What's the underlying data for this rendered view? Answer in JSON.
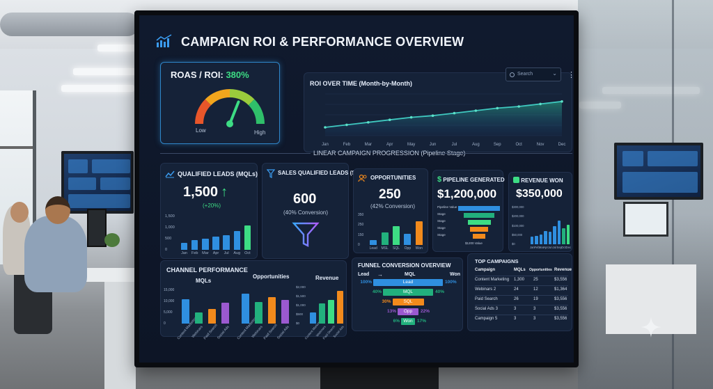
{
  "dashboard": {
    "title": "CAMPAIGN ROI & PERFORMANCE OVERVIEW",
    "search_placeholder": "Search",
    "section_label": "LINEAR CAMPAIGN PROGRESSION (Pipeline Stage)"
  },
  "roas": {
    "label": "ROAS / ROI: ",
    "value": "380%",
    "low": "Low",
    "high": "High",
    "gauge_level": 0.62
  },
  "roi_chart": {
    "title": "ROI OVER TIME (Month-by-Month)",
    "months": [
      "Jan",
      "Feb",
      "Mar",
      "Apr",
      "May",
      "Jun",
      "Jul",
      "Aug",
      "Sep",
      "Oct",
      "Nov",
      "Dec"
    ],
    "values": [
      1.0,
      1.3,
      1.6,
      1.9,
      2.2,
      2.4,
      2.7,
      3.0,
      3.3,
      3.5,
      3.8,
      4.1
    ],
    "ylim": [
      0,
      5
    ]
  },
  "mql": {
    "title": "QUALIFIED LEADS (MQLs)",
    "value": "1,500",
    "arrow": "↑",
    "change": "(+20%)",
    "yticks": [
      "1,500",
      "1,000",
      "500",
      "0"
    ],
    "months": [
      "Jan",
      "Feb",
      "Mar",
      "Apr",
      "Jul",
      "Aug",
      "Oct"
    ],
    "values": [
      300,
      450,
      500,
      600,
      650,
      850,
      1100
    ],
    "ymax": 1500
  },
  "sql": {
    "title": "SALES QUALIFIED LEADS (SQLs)",
    "value": "600",
    "sub": "(40% Conversion)"
  },
  "opps": {
    "title": "OPPORTUNITIES",
    "value": "250",
    "sub": "(42% Conversion)",
    "yticks": [
      "350",
      "250",
      "150",
      "0"
    ],
    "stages": [
      "Lead",
      "MSL",
      "SQL",
      "Opp",
      "Won"
    ],
    "values": [
      60,
      150,
      220,
      130,
      280
    ],
    "ymax": 350
  },
  "pipeline": {
    "title": "PIPELINE GENERATED",
    "value": "$1,200,000",
    "rows": [
      "Pipeline Value",
      "Stage",
      "Stage",
      "Stage",
      "Stage"
    ],
    "fractions": [
      1.0,
      0.72,
      0.55,
      0.42,
      0.3
    ],
    "footer": "$1200 Value"
  },
  "revenue": {
    "title": "REVENUE WON",
    "value": "$350,000",
    "yticks": [
      "$300,000",
      "$200,000",
      "$100,000",
      "$50,000",
      "$0"
    ],
    "months": [
      "Jan",
      "Feb",
      "Mar",
      "Apr",
      "Jun",
      "Jul",
      "Sep",
      "Oct",
      "Dec"
    ],
    "values": [
      60,
      70,
      80,
      110,
      100,
      150,
      190,
      130,
      160
    ],
    "ymax": 300
  },
  "channel": {
    "title": "CHANNEL PERFORMANCE",
    "mqls_label": "MQLs",
    "opps_label": "Opportunities",
    "revenue_label": "Revenue",
    "mql_ticks": [
      "15,000",
      "10,000",
      "5,000",
      "0"
    ],
    "rev_ticks": [
      "$2,000",
      "$1,500",
      "$1,000",
      "$500",
      "$0"
    ],
    "channels": [
      "Content Marketing",
      "Webinars",
      "Paid Search",
      "Social Ads"
    ],
    "mql_values": [
      11000,
      5000,
      6500,
      9500
    ],
    "opp_values": [
      90,
      65,
      80,
      70
    ],
    "rev_values": [
      600,
      1100,
      1300,
      1800
    ]
  },
  "funnel": {
    "title": "FUNNEL CONVERSION OVERVIEW",
    "lead": "Lead",
    "arrow": "→",
    "mql": "MQL",
    "won": "Won",
    "stages": [
      {
        "label": "Lead",
        "left_pct": "100%",
        "right_pct": "100%",
        "color": "#2f8fe0"
      },
      {
        "label": "MQL",
        "left_pct": "40%",
        "right_pct": "40%",
        "color": "#22b07d"
      },
      {
        "label": "SQL",
        "left_pct": "30%",
        "right_pct": "",
        "color": "#f28a1c"
      },
      {
        "label": "Opp",
        "left_pct": "13%",
        "right_pct": "22%",
        "color": "#9b59d0"
      },
      {
        "label": "Won",
        "left_pct": "6%",
        "right_pct": "17%",
        "color": "#22b07d"
      }
    ],
    "widths": [
      1.0,
      0.72,
      0.45,
      0.3,
      0.2
    ]
  },
  "top_campaigns": {
    "title": "TOP CAMPAIGNS",
    "headers": [
      "Campaign",
      "MQLs",
      "Opportunities",
      "Revenue"
    ],
    "rows": [
      [
        "Content Marketing",
        "1,300",
        "25",
        "$3,556"
      ],
      [
        "Webinars 2",
        "24",
        "12",
        "$1,364"
      ],
      [
        "Paid Search",
        "26",
        "19",
        "$3,556"
      ],
      [
        "Social Ads 3",
        "3",
        "3",
        "$3,556"
      ],
      [
        "Campaign 5",
        "3",
        "3",
        "$3,556"
      ]
    ]
  },
  "colors": {
    "blue": "#2f8fe0",
    "green": "#3ddc84",
    "orange": "#f28a1c",
    "purple": "#9b59d0",
    "teal": "#22b07d"
  }
}
